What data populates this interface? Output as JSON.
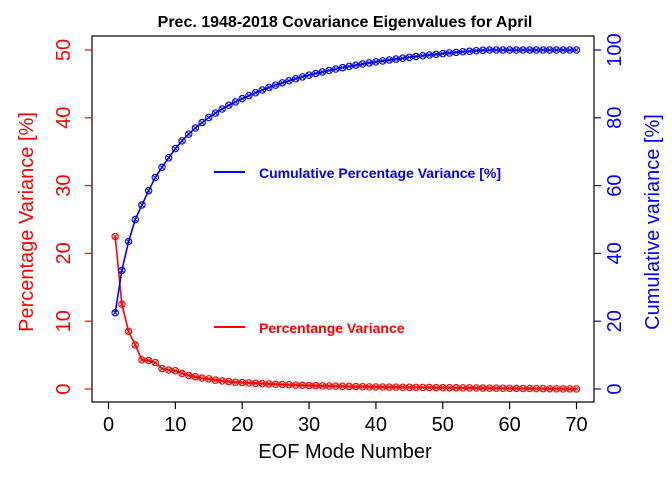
{
  "chart_data": {
    "type": "line",
    "title": "Prec. 1948-2018 Covariance Eigenvalues for April",
    "xlabel": "EOF Mode Number",
    "ylabel_left": "Percentage Variance [%]",
    "ylabel_right": "Cumulative variance [%]",
    "xlim": [
      0,
      70
    ],
    "ylim_left": [
      0,
      50
    ],
    "ylim_right": [
      0,
      100
    ],
    "x_ticks": [
      0,
      10,
      20,
      30,
      40,
      50,
      60,
      70
    ],
    "y_left_ticks": [
      0,
      10,
      20,
      30,
      40,
      50
    ],
    "y_right_ticks": [
      0,
      20,
      40,
      60,
      80,
      100
    ],
    "grid": false,
    "x": [
      1,
      2,
      3,
      4,
      5,
      6,
      7,
      8,
      9,
      10,
      11,
      12,
      13,
      14,
      15,
      16,
      17,
      18,
      19,
      20,
      21,
      22,
      23,
      24,
      25,
      26,
      27,
      28,
      29,
      30,
      31,
      32,
      33,
      34,
      35,
      36,
      37,
      38,
      39,
      40,
      41,
      42,
      43,
      44,
      45,
      46,
      47,
      48,
      49,
      50,
      51,
      52,
      53,
      54,
      55,
      56,
      57,
      58,
      59,
      60,
      61,
      62,
      63,
      64,
      65,
      66,
      67,
      68,
      69,
      70
    ],
    "series": [
      {
        "name": "Percentange Variance",
        "axis": "left",
        "color": "#ff0000",
        "marker": "circle-x",
        "values": [
          22.5,
          12.5,
          8.5,
          6.5,
          4.3,
          4.2,
          3.9,
          3.0,
          2.8,
          2.7,
          2.3,
          2.0,
          1.8,
          1.6,
          1.5,
          1.3,
          1.2,
          1.1,
          1.0,
          0.95,
          0.9,
          0.85,
          0.8,
          0.75,
          0.7,
          0.66,
          0.62,
          0.58,
          0.55,
          0.52,
          0.49,
          0.46,
          0.44,
          0.42,
          0.4,
          0.38,
          0.36,
          0.34,
          0.32,
          0.3,
          0.29,
          0.28,
          0.27,
          0.26,
          0.25,
          0.24,
          0.23,
          0.22,
          0.21,
          0.2,
          0.19,
          0.18,
          0.17,
          0.16,
          0.15,
          0.14,
          0.13,
          0.12,
          0.11,
          0.1,
          0.09,
          0.08,
          0.07,
          0.06,
          0.05,
          0.04,
          0.03,
          0.02,
          0.02,
          0.02
        ]
      },
      {
        "name": "Cumulative Percentage Variance [%]",
        "axis": "right",
        "color": "#0000ff",
        "marker": "circle-x",
        "values": [
          22.5,
          35.0,
          43.5,
          50.0,
          54.3,
          58.5,
          62.4,
          65.4,
          68.2,
          70.9,
          73.2,
          75.2,
          77.0,
          78.6,
          80.1,
          81.4,
          82.6,
          83.7,
          84.7,
          85.65,
          86.55,
          87.4,
          88.2,
          88.95,
          89.65,
          90.31,
          90.93,
          91.51,
          92.06,
          92.58,
          93.07,
          93.53,
          93.97,
          94.39,
          94.79,
          95.17,
          95.53,
          95.87,
          96.19,
          96.49,
          96.78,
          97.06,
          97.33,
          97.59,
          97.84,
          98.08,
          98.31,
          98.53,
          98.74,
          98.94,
          99.13,
          99.31,
          99.48,
          99.64,
          99.79,
          99.93,
          100.0,
          100.0,
          100.0,
          100.0,
          100.0,
          100.0,
          100.0,
          100.0,
          100.0,
          100.0,
          100.0,
          100.0,
          100.0,
          100.0
        ]
      }
    ],
    "legend": [
      {
        "label": "Cumulative Percentage Variance [%]",
        "color": "#0000ff"
      },
      {
        "label": "Percentange Variance",
        "color": "#ff0000"
      }
    ]
  }
}
